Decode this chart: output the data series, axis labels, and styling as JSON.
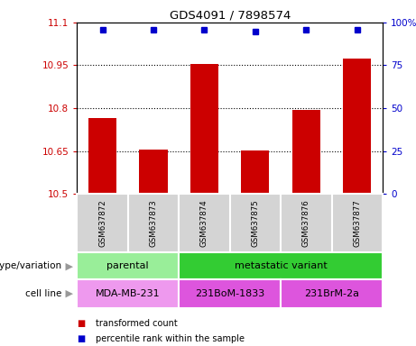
{
  "title": "GDS4091 / 7898574",
  "samples": [
    "GSM637872",
    "GSM637873",
    "GSM637874",
    "GSM637875",
    "GSM637876",
    "GSM637877"
  ],
  "bar_values": [
    10.765,
    10.655,
    10.955,
    10.651,
    10.793,
    10.975
  ],
  "percentile_values": [
    11.075,
    11.075,
    11.075,
    11.068,
    11.075,
    11.075
  ],
  "ylim": [
    10.5,
    11.1
  ],
  "yticks": [
    10.5,
    10.65,
    10.8,
    10.95,
    11.1
  ],
  "ytick_labels": [
    "10.5",
    "10.65",
    "10.8",
    "10.95",
    "11.1"
  ],
  "right_yticks_vals": [
    10.5,
    10.65,
    10.8,
    10.95,
    11.1
  ],
  "right_ytick_labels": [
    "0",
    "25",
    "50",
    "75",
    "100%"
  ],
  "bar_color": "#cc0000",
  "percentile_color": "#0000cc",
  "plot_bg": "#ffffff",
  "sample_box_color": "#d4d4d4",
  "genotype_groups": [
    {
      "label": "parental",
      "start": 0,
      "end": 2,
      "color": "#99ee99"
    },
    {
      "label": "metastatic variant",
      "start": 2,
      "end": 6,
      "color": "#33cc33"
    }
  ],
  "cell_line_groups": [
    {
      "label": "MDA-MB-231",
      "start": 0,
      "end": 2,
      "color": "#ee99ee"
    },
    {
      "label": "231BoM-1833",
      "start": 2,
      "end": 4,
      "color": "#dd55dd"
    },
    {
      "label": "231BrM-2a",
      "start": 4,
      "end": 6,
      "color": "#dd55dd"
    }
  ],
  "legend_items": [
    {
      "color": "#cc0000",
      "label": "transformed count"
    },
    {
      "color": "#0000cc",
      "label": "percentile rank within the sample"
    }
  ],
  "tick_color_left": "#cc0000",
  "tick_color_right": "#0000cc",
  "bar_width": 0.55,
  "arrow_color": "#999999",
  "label_left_text": [
    "genotype/variation",
    "cell line"
  ]
}
